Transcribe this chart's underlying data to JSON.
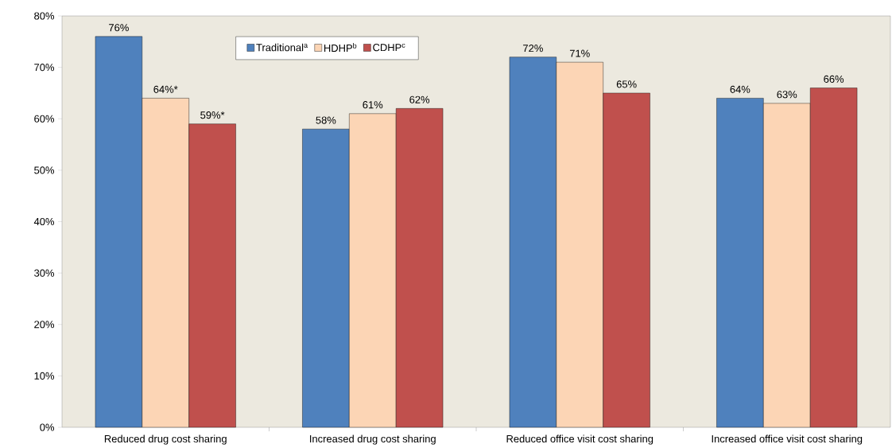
{
  "chart_data": {
    "type": "bar",
    "categories": [
      "Reduced drug cost sharing",
      "Increased drug cost sharing",
      "Reduced office visit cost sharing",
      "Increased office visit cost sharing"
    ],
    "series": [
      {
        "name": "Traditional$^{a}$",
        "color": "#4f81bd",
        "values": [
          76,
          58,
          72,
          64
        ],
        "value_labels": [
          "76%",
          "58%",
          "72%",
          "64%"
        ]
      },
      {
        "name": "HDHP$^{b}$",
        "color": "#fcd5b5",
        "values": [
          64,
          61,
          71,
          63
        ],
        "value_labels": [
          "64%*",
          "61%",
          "71%",
          "63%"
        ]
      },
      {
        "name": "CDHP$^{c}$",
        "color": "#c0504d",
        "values": [
          59,
          62,
          65,
          66
        ],
        "value_labels": [
          "59%*",
          "62%",
          "65%",
          "66%"
        ]
      }
    ],
    "ylim": [
      0,
      80
    ],
    "yticks": [
      {
        "value": 0,
        "label": "0%"
      },
      {
        "value": 10,
        "label": "10%"
      },
      {
        "value": 20,
        "label": "20%"
      },
      {
        "value": 30,
        "label": "30%"
      },
      {
        "value": 40,
        "label": "40%"
      },
      {
        "value": 50,
        "label": "50%"
      },
      {
        "value": 60,
        "label": "60%"
      },
      {
        "value": 70,
        "label": "70%"
      },
      {
        "value": 80,
        "label": "80%"
      }
    ],
    "legend": "top",
    "grid": false
  }
}
